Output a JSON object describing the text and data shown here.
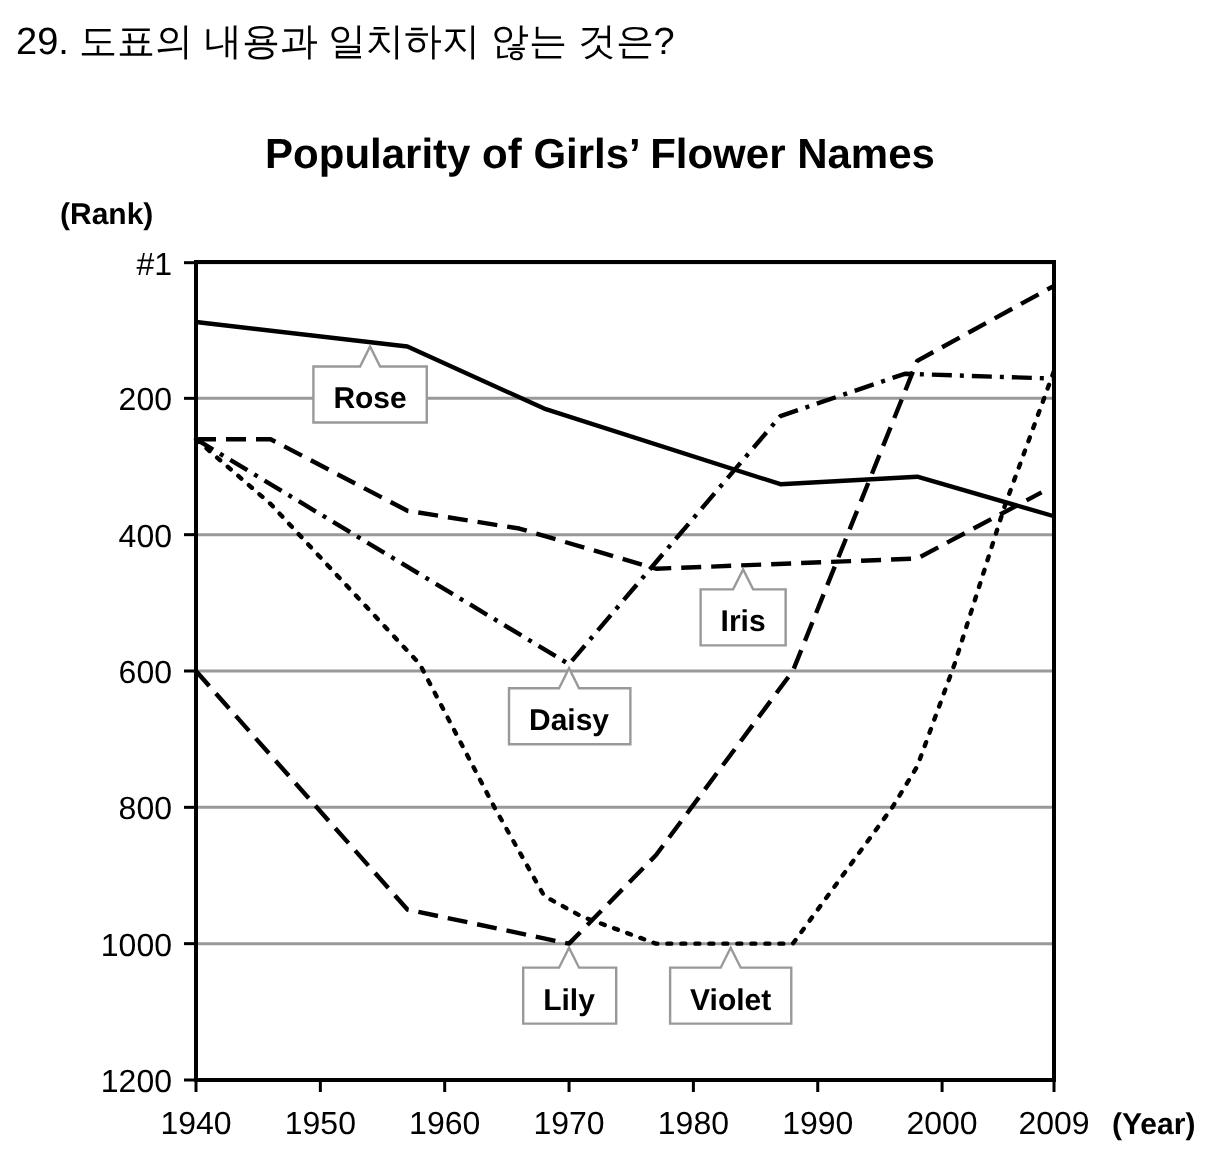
{
  "chart_data": {
    "type": "line",
    "title": "Popularity of Girls’ Flower Names",
    "ylabel": "(Rank)",
    "xlabel": "(Year)",
    "annotations": [
      "29. 도표의 내용과 일치하지 않는 것은?",
      {
        "text": "Rose",
        "x": 1954,
        "y": 118
      },
      {
        "text": "Iris",
        "x": 1984,
        "y": 445
      },
      {
        "text": "Daisy",
        "x": 1970,
        "y": 590
      },
      {
        "text": "Lily",
        "x": 1970,
        "y": 1000
      },
      {
        "text": "Violet",
        "x": 1983,
        "y": 1000
      }
    ],
    "xlim": [
      1940,
      2009
    ],
    "xticks": [
      1940,
      1950,
      1960,
      1970,
      1980,
      1990,
      2000,
      2009
    ],
    "ylim": [
      1200,
      0
    ],
    "yticks": [
      {
        "value": 1,
        "label": "#1"
      },
      200,
      400,
      600,
      800,
      1000,
      1200
    ],
    "grid": "y",
    "marker": "none",
    "series": [
      {
        "color": "#000000",
        "line_style": "solid",
        "x": [
          1940,
          1957,
          1968,
          1987,
          1998,
          2009
        ],
        "values": [
          88,
          124,
          215,
          326,
          315,
          373
        ]
      },
      {
        "color": "#000000",
        "line_style": "dashed",
        "x": [
          1940,
          1946,
          1957,
          1966,
          1977,
          1998,
          2008
        ],
        "values": [
          260,
          260,
          365,
          391,
          450,
          435,
          338
        ]
      },
      {
        "color": "#000000",
        "line_style": "dashdot",
        "x": [
          1940,
          1970,
          1987,
          1997,
          2009
        ],
        "values": [
          260,
          590,
          226,
          164,
          171
        ]
      },
      {
        "color": "#000000",
        "line_style": "dashed",
        "x": [
          1940,
          1957,
          1970,
          1977,
          1988,
          1998,
          2009
        ],
        "values": [
          600,
          950,
          1000,
          870,
          600,
          145,
          35
        ]
      },
      {
        "color": "#000000",
        "line_style": "dotted",
        "x": [
          1940,
          1946,
          1958,
          1964,
          1968,
          1971,
          1977,
          1988,
          1996,
          1998,
          2001,
          2005,
          2009
        ],
        "values": [
          260,
          355,
          590,
          800,
          930,
          960,
          1000,
          1000,
          800,
          740,
          590,
          360,
          160
        ]
      }
    ]
  }
}
